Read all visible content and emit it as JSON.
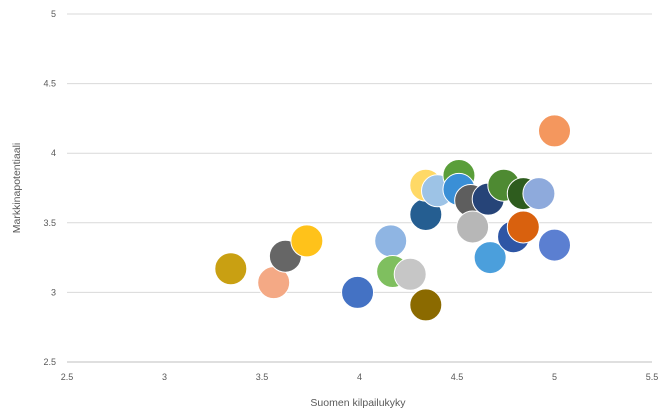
{
  "chart_data": {
    "type": "scatter",
    "title": "",
    "xlabel": "Suomen kilpailukyky",
    "ylabel": "Markkinapotentiaali",
    "xlim": [
      2.5,
      5.5
    ],
    "ylim": [
      2.5,
      5
    ],
    "x_ticks": [
      "2.5",
      "3",
      "3.5",
      "4",
      "4.5",
      "5",
      "5.5"
    ],
    "y_ticks": [
      "2.5",
      "3",
      "3.5",
      "4",
      "4.5",
      "5"
    ],
    "grid": "horizontal",
    "legend": "none",
    "points": [
      {
        "x": 3.34,
        "y": 3.17,
        "color": "#c9a012"
      },
      {
        "x": 3.56,
        "y": 3.07,
        "color": "#f4a985"
      },
      {
        "x": 3.62,
        "y": 3.26,
        "color": "#666666"
      },
      {
        "x": 3.73,
        "y": 3.37,
        "color": "#ffc21a"
      },
      {
        "x": 3.99,
        "y": 3.0,
        "color": "#4472c4"
      },
      {
        "x": 4.16,
        "y": 3.37,
        "color": "#8fb5e3"
      },
      {
        "x": 4.17,
        "y": 3.15,
        "color": "#7fbf5f"
      },
      {
        "x": 4.26,
        "y": 3.13,
        "color": "#c6c6c6"
      },
      {
        "x": 4.34,
        "y": 2.91,
        "color": "#8b6a00"
      },
      {
        "x": 4.34,
        "y": 3.56,
        "color": "#255e91"
      },
      {
        "x": 4.34,
        "y": 3.77,
        "color": "#ffd966"
      },
      {
        "x": 4.4,
        "y": 3.73,
        "color": "#9dc3e6"
      },
      {
        "x": 4.51,
        "y": 3.84,
        "color": "#5a9e3a"
      },
      {
        "x": 4.51,
        "y": 3.74,
        "color": "#3a8fd6"
      },
      {
        "x": 4.57,
        "y": 3.66,
        "color": "#5e5e5e"
      },
      {
        "x": 4.58,
        "y": 3.47,
        "color": "#b7b7b7"
      },
      {
        "x": 4.66,
        "y": 3.67,
        "color": "#264478"
      },
      {
        "x": 4.67,
        "y": 3.25,
        "color": "#4b9fdc"
      },
      {
        "x": 4.74,
        "y": 3.77,
        "color": "#4e8a32"
      },
      {
        "x": 4.79,
        "y": 3.4,
        "color": "#2e56a5"
      },
      {
        "x": 4.84,
        "y": 3.71,
        "color": "#2e5c1e"
      },
      {
        "x": 4.84,
        "y": 3.47,
        "color": "#d9610e"
      },
      {
        "x": 4.92,
        "y": 3.71,
        "color": "#8eaadc"
      },
      {
        "x": 5.0,
        "y": 4.16,
        "color": "#f4975e"
      },
      {
        "x": 5.0,
        "y": 3.34,
        "color": "#5b7fd1"
      }
    ]
  }
}
